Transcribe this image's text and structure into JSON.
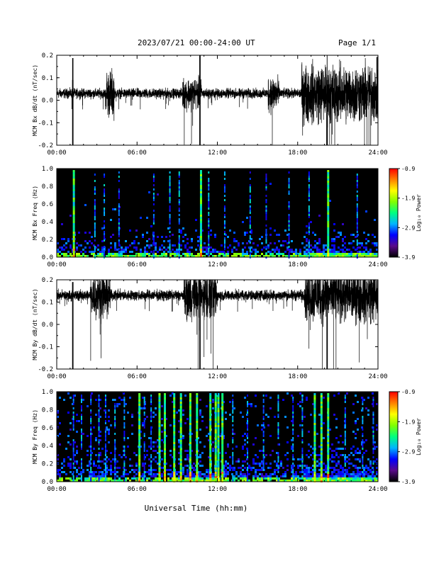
{
  "header": {
    "title": "2023/07/21  00:00-24:00 UT",
    "page": "Page 1/1"
  },
  "chart_data": {
    "type": "line",
    "xlabel": "Universal Time (hh:mm)",
    "x_ticks": [
      "00:00",
      "06:00",
      "12:00",
      "18:00",
      "24:00"
    ],
    "xlim_hours": [
      0,
      24
    ],
    "colorbar": {
      "label": "Log₁₀ Power",
      "ticks": [
        "-0.9",
        "-1.9",
        "-2.9",
        "-3.9"
      ],
      "range": [
        -3.9,
        -0.9
      ],
      "colors": [
        "#000000",
        "#5a0a8a",
        "#0000ff",
        "#00b4ff",
        "#00ff80",
        "#80ff00",
        "#ffff00",
        "#ff8000",
        "#ff0000"
      ]
    },
    "panels": [
      {
        "kind": "timeseries",
        "ylabel": "MCM Bx dB/dt (nT/sec)",
        "ylim": [
          -0.2,
          0.2
        ],
        "y_ticks": [
          "0.2",
          "0.1",
          "0.0",
          "-0.1",
          "-0.2"
        ],
        "baseline": 0.03,
        "noise": 0.018,
        "spikes_hours": [
          1.2,
          10.7,
          20.2
        ],
        "spike_level": -0.2,
        "active_windows": [
          [
            3.7,
            4.3,
            0.07
          ],
          [
            9.4,
            10.8,
            0.04
          ],
          [
            15.8,
            16.6,
            0.05
          ],
          [
            18.3,
            24,
            0.09
          ]
        ]
      },
      {
        "kind": "spectrogram",
        "ylabel": "MCM Bx Freq (Hz)",
        "ylim": [
          0.0,
          1.0
        ],
        "y_ticks": [
          "1.0",
          "0.8",
          "0.6",
          "0.4",
          "0.2",
          "0.0"
        ],
        "bright_hours": [
          1.2,
          10.7,
          20.2
        ],
        "faint_hours": [
          2.8,
          3.5,
          4.6,
          7.2,
          8.4,
          9.1,
          11.3,
          12.5,
          14.4,
          15.6,
          17.3,
          18.8,
          22.4
        ]
      },
      {
        "kind": "timeseries",
        "ylabel": "MCM By dB/dt (nT/sec)",
        "ylim": [
          -0.2,
          0.2
        ],
        "y_ticks": [
          "0.2",
          "0.1",
          "0.0",
          "-0.1",
          "-0.2"
        ],
        "baseline": 0.13,
        "noise": 0.02,
        "spikes_hours": [
          1.2,
          10.7,
          20.2
        ],
        "spike_level": -0.2,
        "active_windows": [
          [
            2.5,
            4.0,
            0.06
          ],
          [
            9.5,
            12.0,
            0.07
          ],
          [
            18.5,
            24,
            0.08
          ]
        ]
      },
      {
        "kind": "spectrogram",
        "ylabel": "MCM By Freq (Hz)",
        "ylim": [
          0.0,
          1.0
        ],
        "y_ticks": [
          "1.0",
          "0.8",
          "0.6",
          "0.4",
          "0.2",
          "0.0"
        ],
        "bright_hours": [
          6.1,
          7.6,
          8.0,
          8.7,
          9.2,
          9.9,
          10.4,
          11.4,
          11.8,
          12.0,
          12.3,
          19.2,
          19.7,
          20.2
        ],
        "faint_hours": [
          1.2,
          1.8,
          2.5,
          3.1,
          3.6,
          4.3,
          5.0,
          6.5,
          7.0,
          13.1,
          14.2,
          15.4,
          16.5,
          17.6,
          18.3,
          21.5,
          22.8,
          23.6
        ]
      }
    ]
  }
}
